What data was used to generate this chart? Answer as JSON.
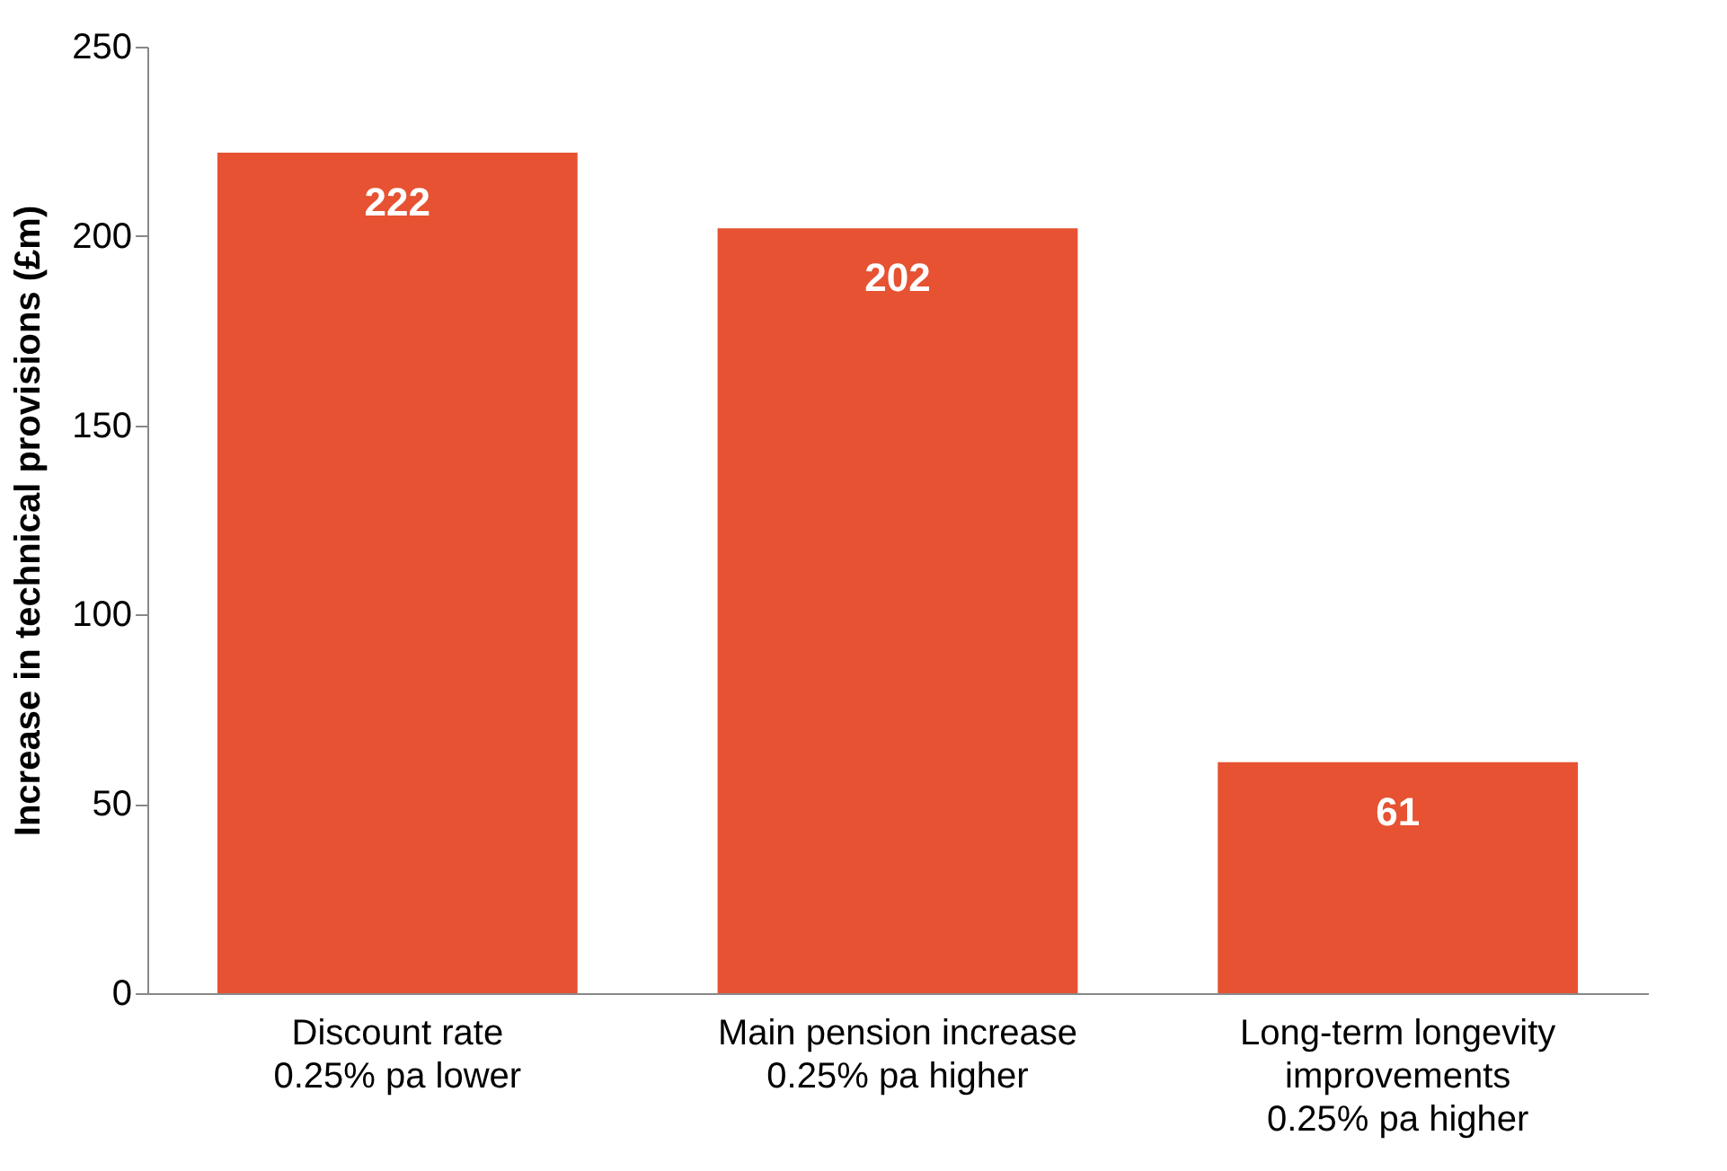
{
  "chart_data": {
    "type": "bar",
    "ylabel": "Increase in technical provisions (£m)",
    "categories": [
      "Discount rate\n0.25% pa lower",
      "Main pension increase\n0.25% pa higher",
      "Long-term longevity\nimprovements\n0.25% pa higher"
    ],
    "values": [
      222,
      202,
      61
    ],
    "color": "#e65232",
    "ylim": [
      0,
      250
    ],
    "yticks": [
      0,
      50,
      100,
      150,
      200,
      250
    ],
    "grid": false,
    "data_labels": true
  }
}
